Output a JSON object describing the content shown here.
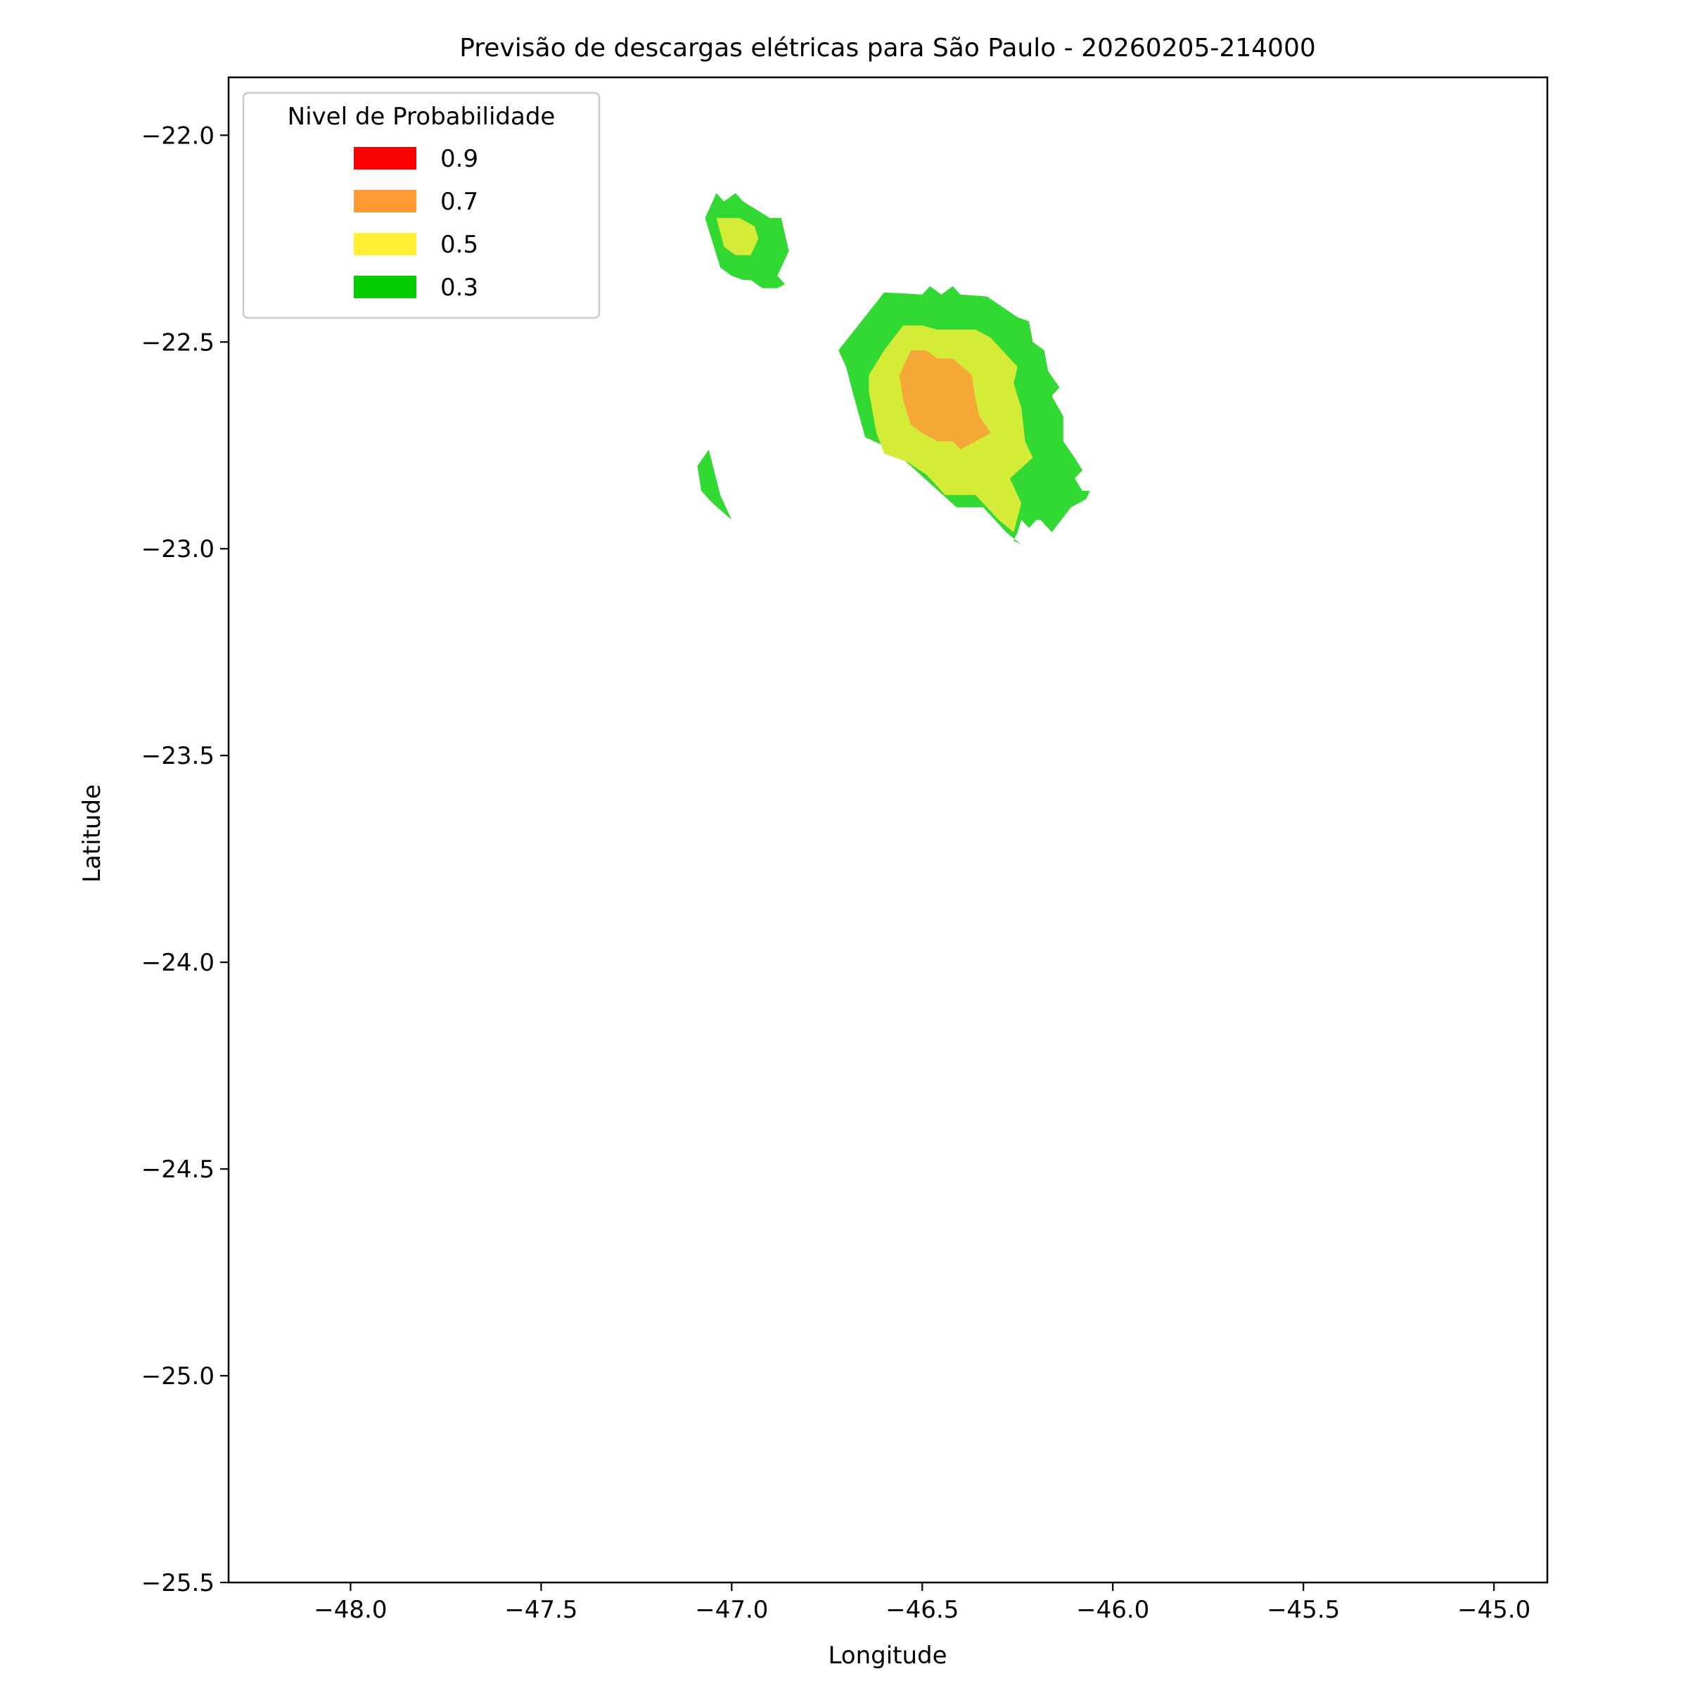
{
  "chart_data": {
    "type": "contour",
    "title": "Previsão de descargas elétricas para São Paulo - 20260205-214000",
    "xlabel": "Longitude",
    "ylabel": "Latitude",
    "xlim": [
      -48.32,
      -44.86
    ],
    "ylim": [
      -25.5,
      -21.86
    ],
    "xticks": [
      -48.0,
      -47.5,
      -47.0,
      -46.5,
      -46.0,
      -45.5,
      -45.0
    ],
    "yticks": [
      -22.0,
      -22.5,
      -23.0,
      -23.5,
      -24.0,
      -24.5,
      -25.0,
      -25.5
    ],
    "xtick_labels": [
      "−48.0",
      "−47.5",
      "−47.0",
      "−46.5",
      "−46.0",
      "−45.5",
      "−45.0"
    ],
    "ytick_labels": [
      "−22.0",
      "−22.5",
      "−23.0",
      "−23.5",
      "−24.0",
      "−24.5",
      "−25.0",
      "−25.5"
    ],
    "grid": false,
    "legend": {
      "title": "Nivel de Probabilidade",
      "placement": "upper-left",
      "entries": [
        {
          "label": "0.9",
          "color": "#ff0000"
        },
        {
          "label": "0.7",
          "color": "#ff9933"
        },
        {
          "label": "0.5",
          "color": "#ffee33"
        },
        {
          "label": "0.3",
          "color": "#00cc00"
        }
      ]
    },
    "fill_colors": {
      "0.3": "#33d933",
      "0.5": "#d4eb38",
      "0.7": "#f5a836"
    },
    "regions": [
      {
        "level": "0.3",
        "points": [
          [
            -46.72,
            -22.52
          ],
          [
            -46.6,
            -22.38
          ],
          [
            -46.5,
            -22.385
          ],
          [
            -46.48,
            -22.365
          ],
          [
            -46.45,
            -22.385
          ],
          [
            -46.42,
            -22.365
          ],
          [
            -46.4,
            -22.385
          ],
          [
            -46.33,
            -22.39
          ],
          [
            -46.25,
            -22.44
          ],
          [
            -46.22,
            -22.45
          ],
          [
            -46.21,
            -22.5
          ],
          [
            -46.18,
            -22.52
          ],
          [
            -46.17,
            -22.57
          ],
          [
            -46.14,
            -22.61
          ],
          [
            -46.16,
            -22.63
          ],
          [
            -46.13,
            -22.68
          ],
          [
            -46.13,
            -22.74
          ],
          [
            -46.1,
            -22.78
          ],
          [
            -46.08,
            -22.81
          ],
          [
            -46.1,
            -22.83
          ],
          [
            -46.08,
            -22.86
          ],
          [
            -46.06,
            -22.86
          ],
          [
            -46.07,
            -22.88
          ],
          [
            -46.11,
            -22.9
          ],
          [
            -46.16,
            -22.96
          ],
          [
            -46.19,
            -22.93
          ],
          [
            -46.2,
            -22.93
          ],
          [
            -46.22,
            -22.95
          ],
          [
            -46.24,
            -22.93
          ],
          [
            -46.25,
            -22.96
          ],
          [
            -46.26,
            -22.98
          ],
          [
            -46.24,
            -22.99
          ],
          [
            -46.28,
            -22.96
          ],
          [
            -46.34,
            -22.9
          ],
          [
            -46.41,
            -22.9
          ],
          [
            -46.47,
            -22.85
          ],
          [
            -46.53,
            -22.8
          ],
          [
            -46.58,
            -22.76
          ],
          [
            -46.65,
            -22.73
          ],
          [
            -46.68,
            -22.63
          ],
          [
            -46.7,
            -22.56
          ]
        ]
      },
      {
        "level": "0.5",
        "points": [
          [
            -46.6,
            -22.52
          ],
          [
            -46.55,
            -22.46
          ],
          [
            -46.5,
            -22.46
          ],
          [
            -46.46,
            -22.47
          ],
          [
            -46.36,
            -22.47
          ],
          [
            -46.32,
            -22.49
          ],
          [
            -46.25,
            -22.56
          ],
          [
            -46.26,
            -22.6
          ],
          [
            -46.24,
            -22.66
          ],
          [
            -46.23,
            -22.74
          ],
          [
            -46.21,
            -22.78
          ],
          [
            -46.27,
            -22.83
          ],
          [
            -46.24,
            -22.89
          ],
          [
            -46.26,
            -22.96
          ],
          [
            -46.3,
            -22.93
          ],
          [
            -46.36,
            -22.87
          ],
          [
            -46.44,
            -22.87
          ],
          [
            -46.49,
            -22.82
          ],
          [
            -46.54,
            -22.79
          ],
          [
            -46.6,
            -22.77
          ],
          [
            -46.62,
            -22.72
          ],
          [
            -46.64,
            -22.62
          ],
          [
            -46.64,
            -22.58
          ]
        ]
      },
      {
        "level": "0.7",
        "points": [
          [
            -46.56,
            -22.58
          ],
          [
            -46.53,
            -22.52
          ],
          [
            -46.49,
            -22.52
          ],
          [
            -46.46,
            -22.54
          ],
          [
            -46.42,
            -22.54
          ],
          [
            -46.37,
            -22.58
          ],
          [
            -46.36,
            -22.64
          ],
          [
            -46.35,
            -22.68
          ],
          [
            -46.32,
            -22.72
          ],
          [
            -46.36,
            -22.74
          ],
          [
            -46.4,
            -22.76
          ],
          [
            -46.42,
            -22.74
          ],
          [
            -46.46,
            -22.74
          ],
          [
            -46.5,
            -22.72
          ],
          [
            -46.53,
            -22.7
          ],
          [
            -46.55,
            -22.64
          ]
        ]
      },
      {
        "level": "0.3",
        "points": [
          [
            -47.07,
            -22.2
          ],
          [
            -47.04,
            -22.14
          ],
          [
            -47.02,
            -22.16
          ],
          [
            -46.99,
            -22.14
          ],
          [
            -46.97,
            -22.16
          ],
          [
            -46.9,
            -22.2
          ],
          [
            -46.87,
            -22.2
          ],
          [
            -46.85,
            -22.28
          ],
          [
            -46.88,
            -22.34
          ],
          [
            -46.86,
            -22.36
          ],
          [
            -46.88,
            -22.37
          ],
          [
            -46.92,
            -22.37
          ],
          [
            -46.95,
            -22.35
          ],
          [
            -46.97,
            -22.35
          ],
          [
            -47.0,
            -22.34
          ],
          [
            -47.03,
            -22.32
          ]
        ]
      },
      {
        "level": "0.5",
        "points": [
          [
            -47.04,
            -22.2
          ],
          [
            -46.98,
            -22.2
          ],
          [
            -46.94,
            -22.22
          ],
          [
            -46.93,
            -22.25
          ],
          [
            -46.95,
            -22.29
          ],
          [
            -46.99,
            -22.29
          ],
          [
            -47.02,
            -22.27
          ]
        ]
      },
      {
        "level": "0.3",
        "points": [
          [
            -47.09,
            -22.8
          ],
          [
            -47.06,
            -22.76
          ],
          [
            -47.03,
            -22.87
          ],
          [
            -46.99,
            -22.95
          ],
          [
            -47.0,
            -22.93
          ],
          [
            -47.05,
            -22.89
          ],
          [
            -47.08,
            -22.86
          ]
        ]
      }
    ]
  }
}
